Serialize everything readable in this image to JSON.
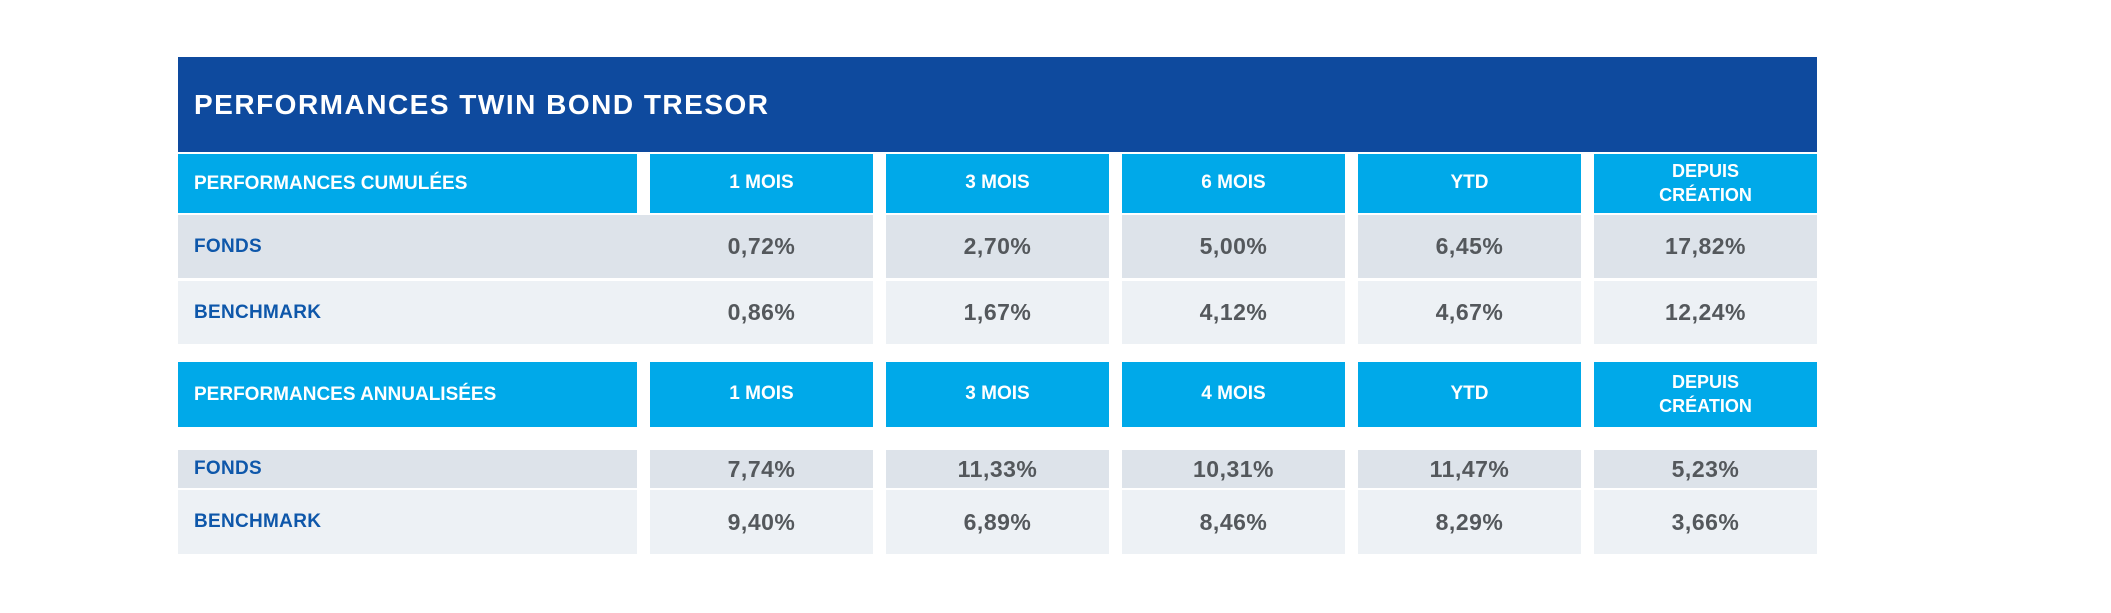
{
  "title": "PERFORMANCES TWIN BOND TRESOR",
  "colors": {
    "title_bar": "#0e4a9e",
    "header_cell": "#00a9e9",
    "row_fonds_bg": "#dde3ea",
    "row_benchmark_bg": "#edf1f5",
    "row_label_text": "#0e57aa",
    "value_text": "#54585c"
  },
  "tables": [
    {
      "section_label": "PERFORMANCES CUMULÉES",
      "columns": [
        "1 MOIS",
        "3 MOIS",
        "6 MOIS",
        "YTD",
        "DEPUIS CRÉATION"
      ],
      "rows": [
        {
          "label": "FONDS",
          "values": [
            "0,72%",
            "2,70%",
            "5,00%",
            "6,45%",
            "17,82%"
          ]
        },
        {
          "label": "BENCHMARK",
          "values": [
            "0,86%",
            "1,67%",
            "4,12%",
            "4,67%",
            "12,24%"
          ]
        }
      ]
    },
    {
      "section_label": "PERFORMANCES ANNUALISÉES",
      "columns": [
        "1 MOIS",
        "3 MOIS",
        "4 MOIS",
        "YTD",
        "DEPUIS CRÉATION"
      ],
      "rows": [
        {
          "label": "FONDS",
          "values": [
            "7,74%",
            "11,33%",
            "10,31%",
            "11,47%",
            "5,23%"
          ]
        },
        {
          "label": "BENCHMARK",
          "values": [
            "9,40%",
            "6,89%",
            "8,46%",
            "8,29%",
            "3,66%"
          ]
        }
      ]
    }
  ]
}
